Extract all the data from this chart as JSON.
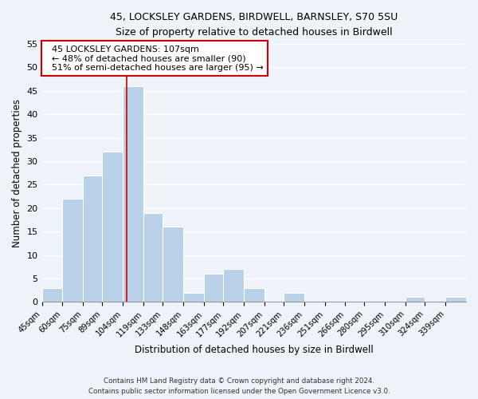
{
  "title1": "45, LOCKSLEY GARDENS, BIRDWELL, BARNSLEY, S70 5SU",
  "title2": "Size of property relative to detached houses in Birdwell",
  "xlabel": "Distribution of detached houses by size in Birdwell",
  "ylabel": "Number of detached properties",
  "bar_color": "#b8d0e8",
  "redline_x": 107,
  "categories": [
    "45sqm",
    "60sqm",
    "75sqm",
    "89sqm",
    "104sqm",
    "119sqm",
    "133sqm",
    "148sqm",
    "163sqm",
    "177sqm",
    "192sqm",
    "207sqm",
    "221sqm",
    "236sqm",
    "251sqm",
    "266sqm",
    "280sqm",
    "295sqm",
    "310sqm",
    "324sqm",
    "339sqm"
  ],
  "bin_edges": [
    45,
    60,
    75,
    89,
    104,
    119,
    133,
    148,
    163,
    177,
    192,
    207,
    221,
    236,
    251,
    266,
    280,
    295,
    310,
    324,
    339,
    354
  ],
  "values": [
    3,
    22,
    27,
    32,
    46,
    19,
    16,
    2,
    6,
    7,
    3,
    0,
    2,
    0,
    0,
    0,
    0,
    0,
    1,
    0,
    1
  ],
  "ylim": [
    0,
    55
  ],
  "yticks": [
    0,
    5,
    10,
    15,
    20,
    25,
    30,
    35,
    40,
    45,
    50,
    55
  ],
  "annotation_title": "45 LOCKSLEY GARDENS: 107sqm",
  "annotation_line1": "← 48% of detached houses are smaller (90)",
  "annotation_line2": "51% of semi-detached houses are larger (95) →",
  "footer1": "Contains HM Land Registry data © Crown copyright and database right 2024.",
  "footer2": "Contains public sector information licensed under the Open Government Licence v3.0.",
  "background_color": "#eef2f9",
  "grid_color": "#ffffff",
  "redline_color": "#cc0000"
}
